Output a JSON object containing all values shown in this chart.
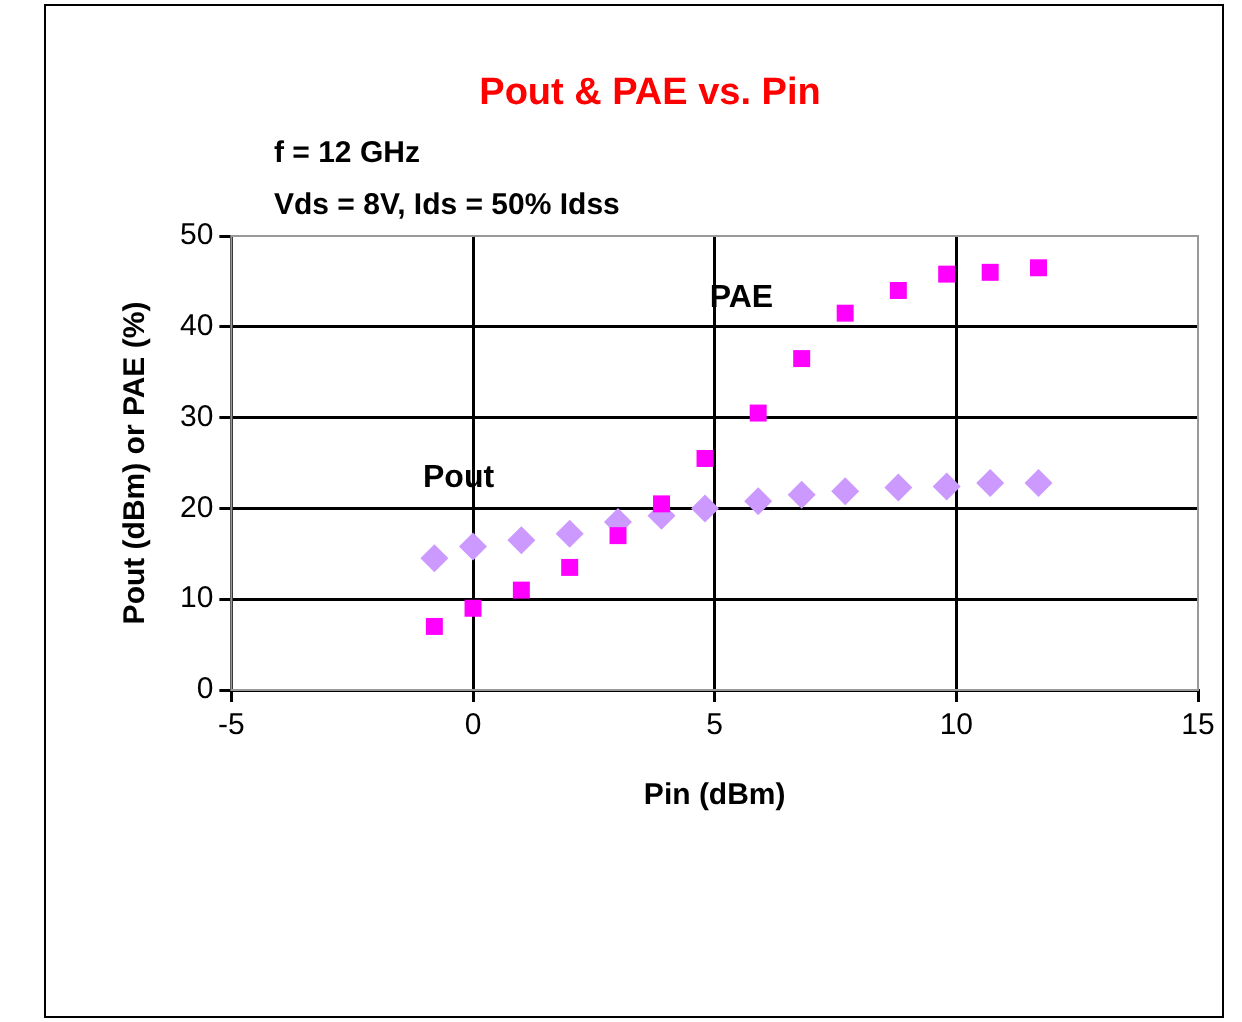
{
  "chart_data": {
    "type": "scatter",
    "title": "Pout & PAE vs. Pin",
    "subtitle": "f = 12 GHz\nVds = 8V, Ids = 50% Idss",
    "xlabel": "Pin (dBm)",
    "ylabel": "Pout (dBm) or PAE (%)",
    "x": [
      -0.8,
      0,
      1,
      2,
      3,
      3.9,
      4.8,
      5.9,
      6.8,
      7.7,
      8.8,
      9.8,
      10.7,
      11.7
    ],
    "series": [
      {
        "name": "PAE",
        "color": "#ff00ff",
        "marker": "square",
        "values": [
          7,
          9,
          11,
          13.5,
          17,
          20.5,
          25.5,
          30.5,
          36.5,
          41.5,
          44,
          45.8,
          46,
          46.5
        ]
      },
      {
        "name": "Pout",
        "color": "#cc99ff",
        "marker": "diamond",
        "values": [
          14.5,
          15.8,
          16.5,
          17.2,
          18.5,
          19.2,
          20,
          20.8,
          21.5,
          21.9,
          22.3,
          22.4,
          22.8,
          22.8
        ]
      }
    ],
    "xlim": [
      -5,
      15
    ],
    "xticks": [
      -5,
      0,
      5,
      10,
      15
    ],
    "ylim": [
      0,
      50
    ],
    "yticks": [
      0,
      10,
      20,
      30,
      40,
      50
    ],
    "grid": true,
    "legend": false
  }
}
